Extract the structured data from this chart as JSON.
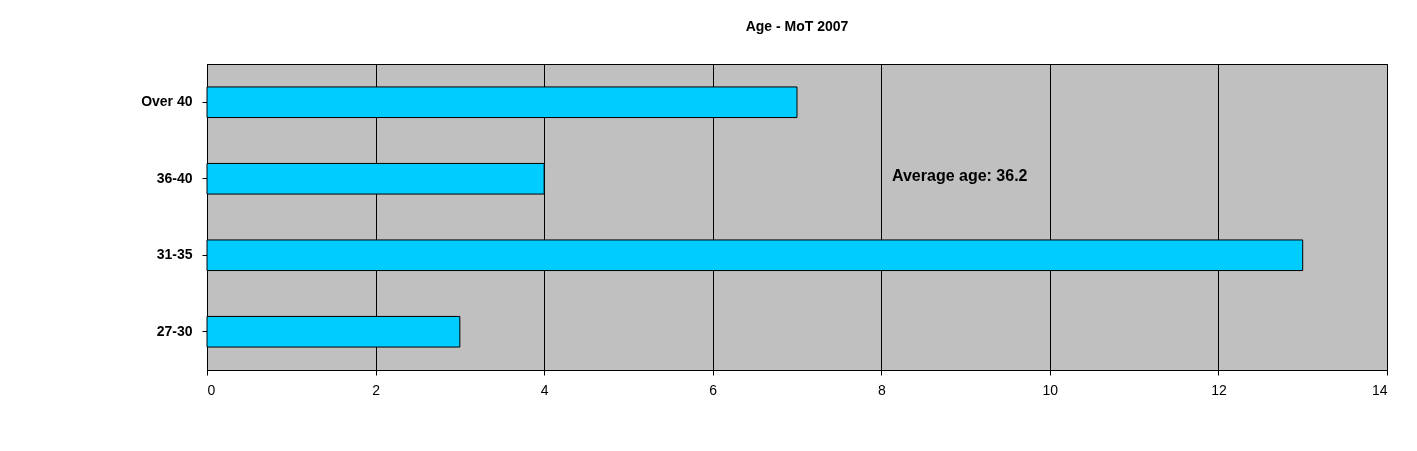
{
  "chart_data": {
    "type": "bar",
    "orientation": "horizontal",
    "title": "Age - MoT 2007",
    "categories": [
      "Over 40",
      "36-40",
      "31-35",
      "27-30"
    ],
    "values": [
      7,
      4,
      13,
      3
    ],
    "color": "#00ccff",
    "xlim": [
      0,
      14
    ],
    "xticks": [
      0,
      2,
      4,
      6,
      8,
      10,
      12,
      14
    ],
    "grid": "x",
    "annotations": [
      "Average age: 36.2"
    ]
  }
}
